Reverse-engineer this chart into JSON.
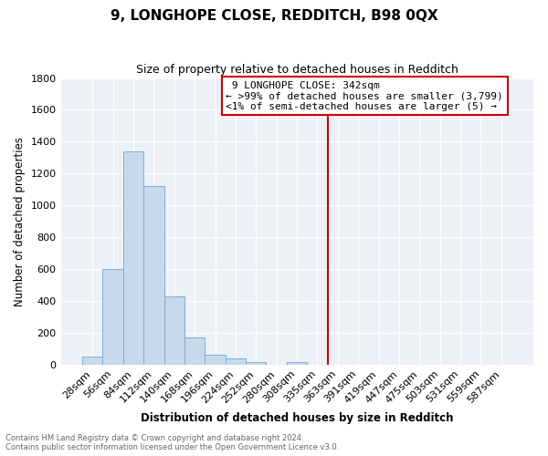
{
  "title": "9, LONGHOPE CLOSE, REDDITCH, B98 0QX",
  "subtitle": "Size of property relative to detached houses in Redditch",
  "xlabel": "Distribution of detached houses by size in Redditch",
  "ylabel": "Number of detached properties",
  "footnote1": "Contains HM Land Registry data © Crown copyright and database right 2024.",
  "footnote2": "Contains public sector information licensed under the Open Government Licence v3.0.",
  "categories": [
    "28sqm",
    "56sqm",
    "84sqm",
    "112sqm",
    "140sqm",
    "168sqm",
    "196sqm",
    "224sqm",
    "252sqm",
    "280sqm",
    "308sqm",
    "335sqm",
    "363sqm",
    "391sqm",
    "419sqm",
    "447sqm",
    "475sqm",
    "503sqm",
    "531sqm",
    "559sqm",
    "587sqm"
  ],
  "values": [
    50,
    600,
    1340,
    1120,
    430,
    170,
    60,
    40,
    15,
    0,
    15,
    0,
    0,
    0,
    0,
    0,
    0,
    0,
    0,
    0,
    0
  ],
  "bar_color": "#c8d9ec",
  "bar_edge_color": "#7bafd4",
  "vline_x": 11.5,
  "vline_color": "#cc0000",
  "legend_title": "9 LONGHOPE CLOSE: 342sqm",
  "legend_line1": "← >99% of detached houses are smaller (3,799)",
  "legend_line2": "<1% of semi-detached houses are larger (5) →",
  "legend_box_color": "#cc0000",
  "ylim": [
    0,
    1800
  ],
  "yticks": [
    0,
    200,
    400,
    600,
    800,
    1000,
    1200,
    1400,
    1600,
    1800
  ],
  "background_color": "#edf1f7",
  "title_fontsize": 11,
  "subtitle_fontsize": 9,
  "xlabel_fontsize": 8.5,
  "ylabel_fontsize": 8.5,
  "tick_fontsize": 8,
  "legend_fontsize": 8
}
